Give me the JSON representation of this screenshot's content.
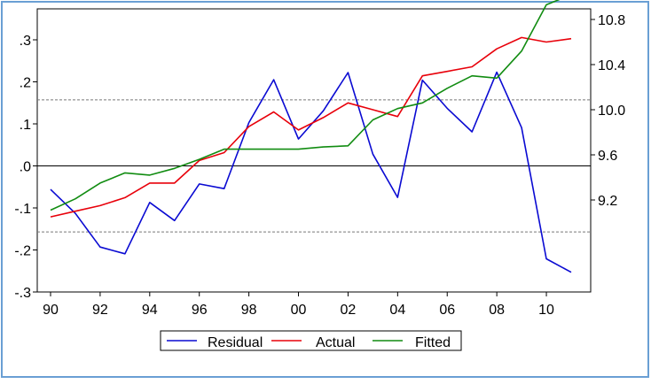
{
  "chart_data": {
    "type": "line",
    "x": [
      "90",
      "91",
      "92",
      "93",
      "94",
      "95",
      "96",
      "97",
      "98",
      "99",
      "00",
      "01",
      "02",
      "03",
      "04",
      "05",
      "06",
      "07",
      "08",
      "09",
      "10",
      "11"
    ],
    "x_tick_labels": [
      "90",
      "92",
      "94",
      "96",
      "98",
      "00",
      "02",
      "04",
      "06",
      "08",
      "10"
    ],
    "left_axis": {
      "ylim": [
        -0.3,
        0.3
      ],
      "ticks": [
        ".3",
        ".2",
        ".1",
        ".0",
        "-.1",
        "-.2",
        "-.3"
      ]
    },
    "right_axis": {
      "ylim": [
        9.2,
        10.8
      ],
      "ticks": [
        "10.8",
        "10.4",
        "10.0",
        "9.6",
        "9.2"
      ]
    },
    "reference_lines": {
      "zero": 0.0,
      "plus_one_se": 0.157,
      "minus_one_se": -0.157
    },
    "series": [
      {
        "name": "Residual",
        "axis": "left",
        "color": "#0a0ad2",
        "values": [
          -0.056,
          -0.113,
          -0.193,
          -0.209,
          -0.087,
          -0.13,
          -0.043,
          -0.054,
          0.103,
          0.205,
          0.064,
          0.131,
          0.222,
          0.028,
          -0.075,
          0.204,
          0.137,
          0.081,
          0.223,
          0.091,
          -0.221,
          -0.253
        ]
      },
      {
        "name": "Actual",
        "axis": "right",
        "color": "#e8000a",
        "values": [
          9.05,
          9.1,
          9.15,
          9.22,
          9.35,
          9.35,
          9.55,
          9.62,
          9.85,
          9.98,
          9.82,
          9.93,
          10.06,
          10.0,
          9.94,
          10.3,
          10.34,
          10.38,
          10.54,
          10.64,
          10.6,
          10.63
        ]
      },
      {
        "name": "Fitted",
        "axis": "right",
        "color": "#118c11",
        "values": [
          9.11,
          9.21,
          9.35,
          9.44,
          9.42,
          9.48,
          9.56,
          9.65,
          9.65,
          9.65,
          9.65,
          9.67,
          9.68,
          9.91,
          10.01,
          10.06,
          10.19,
          10.3,
          10.28,
          10.52,
          10.93,
          11.02
        ]
      }
    ]
  }
}
